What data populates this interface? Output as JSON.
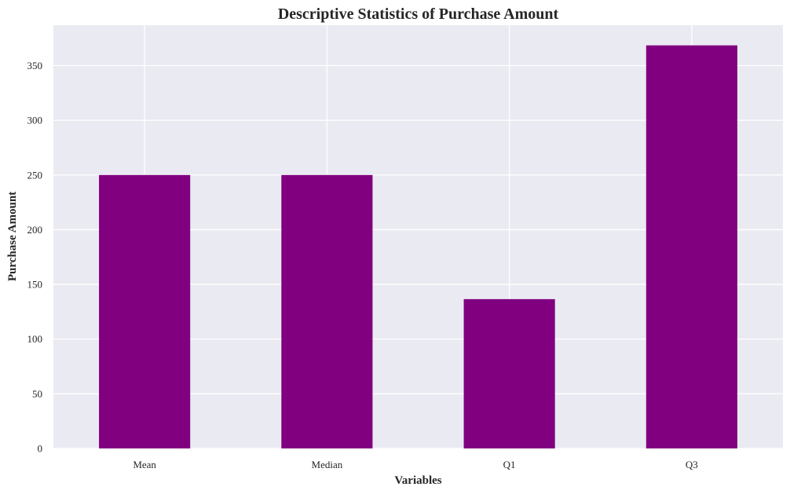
{
  "chart_data": {
    "type": "bar",
    "title": "Descriptive Statistics of Purchase Amount",
    "xlabel": "Variables",
    "ylabel": "Purchase Amount",
    "categories": [
      "Mean",
      "Median",
      "Q1",
      "Q3"
    ],
    "values": [
      250.0,
      250.0,
      136.5,
      368.5
    ],
    "ylim": [
      0,
      387
    ],
    "yticks": [
      0,
      50,
      100,
      150,
      200,
      250,
      300,
      350
    ],
    "grid": true,
    "colors": {
      "bar": "#800080",
      "plot_background": "#EAEAF2",
      "grid": "#FFFFFF",
      "text": "#262626"
    }
  }
}
